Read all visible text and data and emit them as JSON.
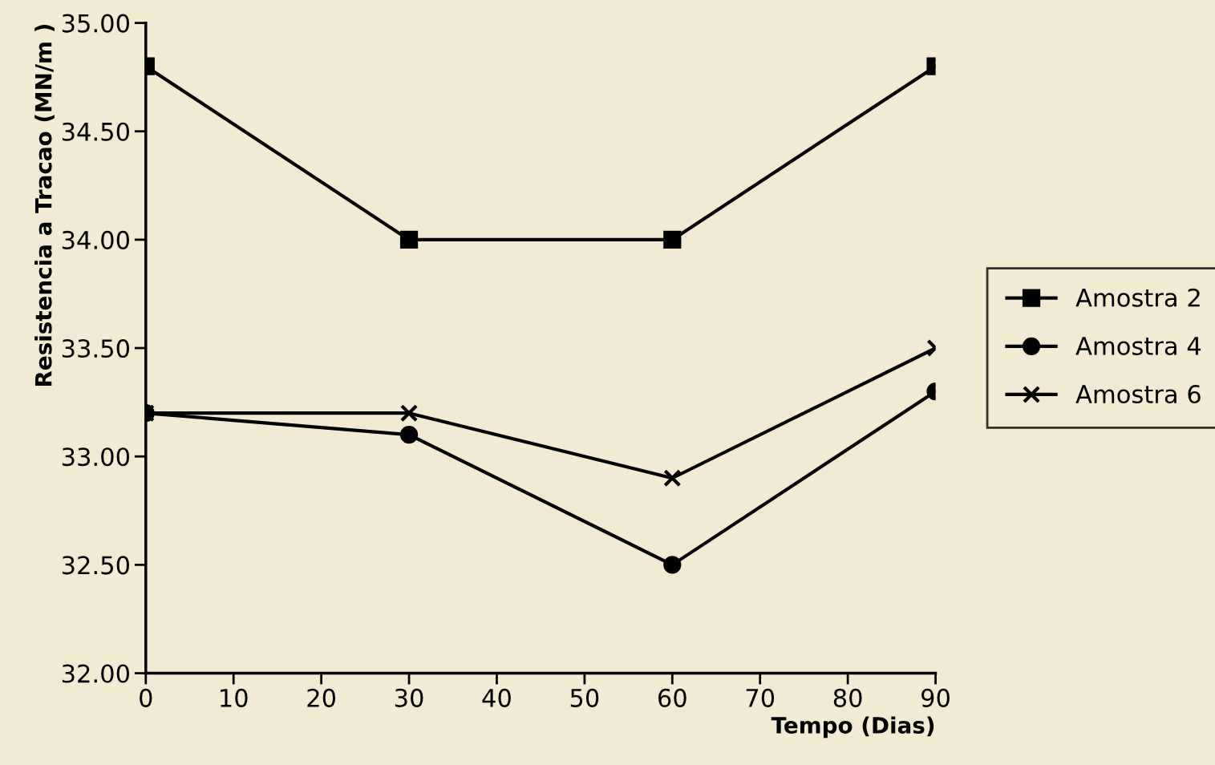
{
  "chart_data": {
    "type": "line",
    "xlabel": "Tempo (Dias)",
    "ylabel": "Resistencia a Tracao (MN/m )",
    "x": [
      0,
      30,
      60,
      90
    ],
    "series": [
      {
        "name": "Amostra 2",
        "color": "#000000",
        "marker": "square",
        "values": [
          34.8,
          34.0,
          34.0,
          34.8
        ]
      },
      {
        "name": "Amostra 4",
        "color": "#000000",
        "marker": "circle",
        "values": [
          33.2,
          33.1,
          32.5,
          33.3
        ]
      },
      {
        "name": "Amostra 6",
        "color": "#000000",
        "marker": "cross",
        "values": [
          33.2,
          33.2,
          32.9,
          33.5
        ]
      }
    ],
    "xlim": [
      0,
      90
    ],
    "xticks": [
      0,
      10,
      20,
      30,
      40,
      50,
      60,
      70,
      80,
      90
    ],
    "ylim": [
      32,
      35
    ],
    "yticks": [
      {
        "value": 32,
        "label": "32.00"
      },
      {
        "value": 32.5,
        "label": "32.50"
      },
      {
        "value": 33,
        "label": "33.00"
      },
      {
        "value": 33.5,
        "label": "33.50"
      },
      {
        "value": 34,
        "label": "34.00"
      },
      {
        "value": 34.5,
        "label": "34.50"
      },
      {
        "value": 35,
        "label": "35.00"
      }
    ],
    "grid": false,
    "legend": "right",
    "line_style": "solid"
  }
}
